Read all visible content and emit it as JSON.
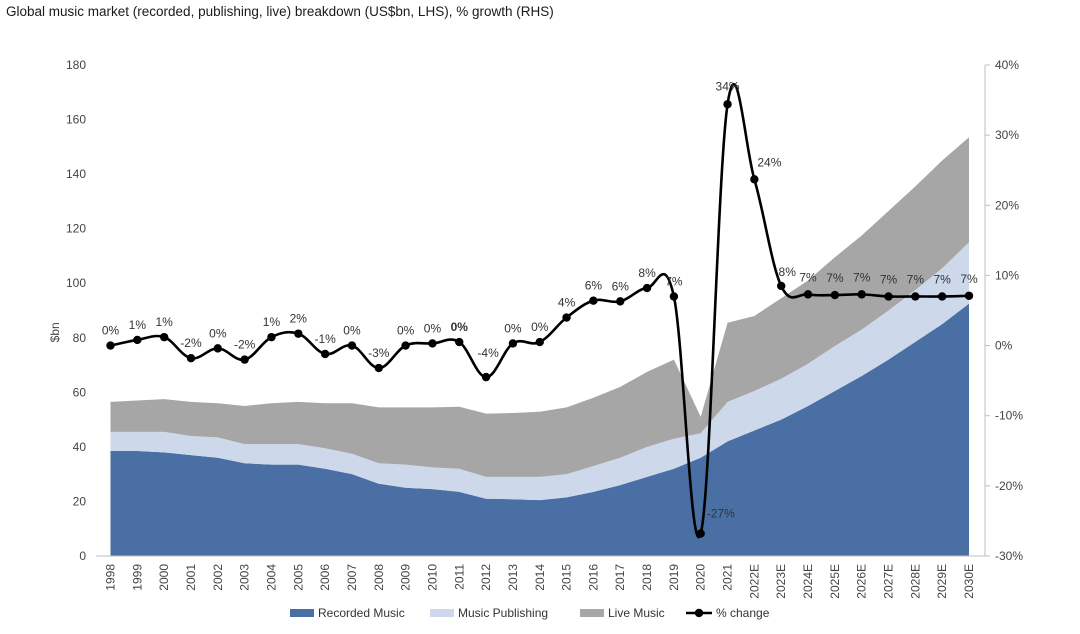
{
  "subtitle": "Global music market (recorded, publishing, live) breakdown (US$bn, LHS), % growth (RHS)",
  "chart_data": {
    "type": "area",
    "ylabel": "$bn",
    "ylim": [
      0,
      180
    ],
    "y_ticks": [
      0,
      20,
      40,
      60,
      80,
      100,
      120,
      140,
      160,
      180
    ],
    "y2lim": [
      -30,
      40
    ],
    "y2_ticks": [
      "-30%",
      "-20%",
      "-10%",
      "0%",
      "10%",
      "20%",
      "30%",
      "40%"
    ],
    "y2_tick_values": [
      -30,
      -20,
      -10,
      0,
      10,
      20,
      30,
      40
    ],
    "categories": [
      "1998",
      "1999",
      "2000",
      "2001",
      "2002",
      "2003",
      "2004",
      "2005",
      "2006",
      "2007",
      "2008",
      "2009",
      "2010",
      "2011",
      "2012",
      "2013",
      "2014",
      "2015",
      "2016",
      "2017",
      "2018",
      "2019",
      "2020",
      "2021",
      "2022E",
      "2023E",
      "2024E",
      "2025E",
      "2026E",
      "2027E",
      "2028E",
      "2029E",
      "2030E"
    ],
    "series": [
      {
        "name": "Recorded Music",
        "kind": "stacked-area",
        "color": "#4a6fa5",
        "values": [
          38.5,
          38.5,
          38,
          37,
          36,
          34,
          33.5,
          33.5,
          32,
          30,
          26.5,
          25,
          24.5,
          23.5,
          21,
          20.8,
          20.5,
          21.5,
          23.5,
          26,
          29,
          32,
          36,
          42,
          46,
          50,
          55,
          60.5,
          66,
          72,
          78.5,
          85,
          92.5
        ]
      },
      {
        "name": "Music  Publishing",
        "kind": "stacked-area",
        "color": "#cdd9ea",
        "values": [
          7,
          7,
          7.5,
          7,
          7.5,
          7,
          7.5,
          7.5,
          7.5,
          7.5,
          7.5,
          8.5,
          8,
          8.5,
          8,
          8.2,
          8.5,
          8.5,
          9.5,
          10,
          11,
          11,
          9,
          14.5,
          14.5,
          15,
          15.5,
          16.5,
          17,
          18,
          19,
          20.5,
          22.5
        ]
      },
      {
        "name": "Live Music",
        "kind": "stacked-area",
        "color": "#a6a6a6",
        "values": [
          11,
          11.5,
          12,
          12.5,
          12.5,
          14,
          15,
          15.5,
          16.5,
          18.5,
          20.5,
          21,
          22,
          22.7,
          23.2,
          23.4,
          23.9,
          24.5,
          25,
          26,
          27.5,
          29,
          6,
          29,
          27.5,
          29.5,
          30.5,
          32.5,
          34.5,
          36.5,
          38,
          39.5,
          38.5
        ]
      },
      {
        "name": "% change",
        "kind": "line",
        "axis": "right",
        "color": "#000000",
        "values": [
          0,
          0.8,
          1.2,
          -1.8,
          -0.4,
          -2,
          1.2,
          1.7,
          -1.2,
          0,
          -3.2,
          0,
          0.3,
          0.5,
          -4.5,
          0.3,
          0.5,
          4,
          6.4,
          6.3,
          8.2,
          7,
          -26.8,
          34.4,
          23.7,
          8.5,
          7.3,
          7.2,
          7.3,
          7,
          7,
          7,
          7.1
        ]
      }
    ],
    "data_labels": [
      "0%",
      "1%",
      "1%",
      "-2%",
      "0%",
      "-2%",
      "1%",
      "2%",
      "-1%",
      "0%",
      "-3%",
      "0%",
      "0%",
      "0%",
      "-4%",
      "0%",
      "0%",
      "4%",
      "6%",
      "6%",
      "8%",
      "7%",
      "-27%",
      "34%",
      "24%",
      "8%",
      "7%",
      "7%",
      "7%",
      "7%",
      "7%",
      "7%",
      "7%"
    ],
    "legend": [
      "Recorded Music",
      "Music  Publishing",
      "Live Music",
      "% change"
    ],
    "legend_position": "bottom"
  }
}
